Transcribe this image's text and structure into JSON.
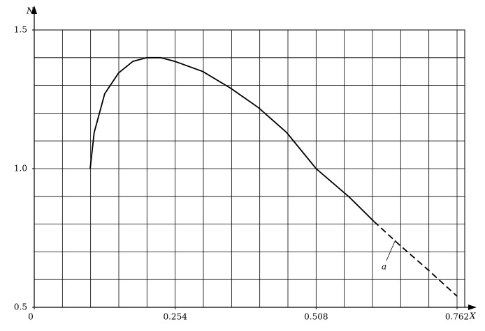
{
  "chart_data": {
    "type": "line",
    "xlabel": "X",
    "ylabel": "N",
    "annotation": "a",
    "xlim": [
      0,
      0.762
    ],
    "ylim": [
      0.5,
      1.5
    ],
    "xticks": [
      0,
      0.254,
      0.508,
      0.762
    ],
    "yticks": [
      0.5,
      {
        "value": 1,
        "label": "1.0"
      },
      1.5
    ],
    "xgrid": [
      0.0508,
      0.1016,
      0.1524,
      0.2032,
      0.254,
      0.3048,
      0.3556,
      0.4064,
      0.4572,
      0.508,
      0.5588,
      0.6096,
      0.6604,
      0.7112,
      0.762
    ],
    "ygrid": [
      0.6,
      0.7,
      0.8,
      0.9,
      1.0,
      1.1,
      1.2,
      1.3,
      1.4,
      1.5
    ],
    "grid": true,
    "series": [
      {
        "color": "#000000",
        "dash": false,
        "x": [
          0.1008,
          0.108,
          0.127,
          0.152,
          0.178,
          0.203,
          0.228,
          0.253,
          0.304,
          0.354,
          0.404,
          0.455,
          0.508,
          0.568,
          0.612
        ],
        "values": [
          1.0,
          1.13,
          1.27,
          1.345,
          1.387,
          1.4,
          1.4,
          1.387,
          1.35,
          1.29,
          1.22,
          1.13,
          1.0,
          0.897,
          0.81
        ]
      },
      {
        "color": "#000000",
        "dash": true,
        "x": [
          0.612,
          0.656,
          0.707,
          0.762
        ],
        "values": [
          0.81,
          0.729,
          0.64,
          0.54
        ]
      }
    ]
  }
}
